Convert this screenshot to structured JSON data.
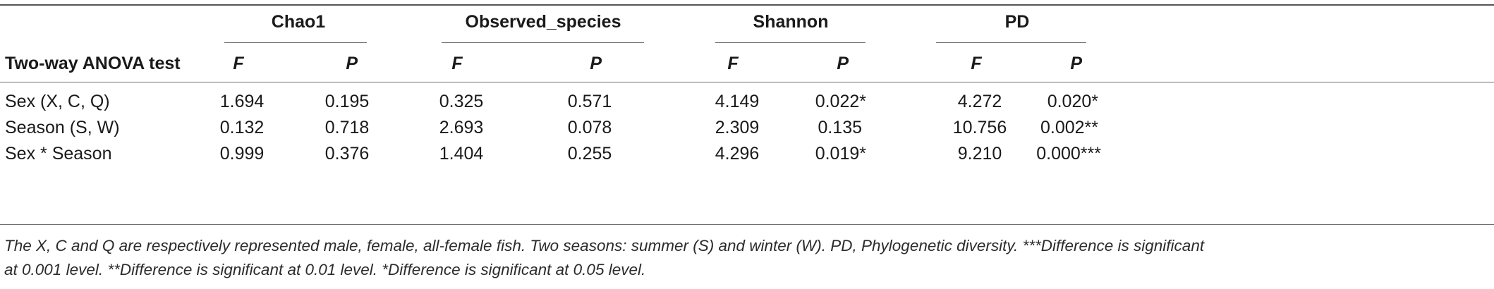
{
  "table": {
    "groups": [
      "Chao1",
      "Observed_species",
      "Shannon",
      "PD"
    ],
    "row_header": "Two-way ANOVA test",
    "stat_f": "F",
    "stat_p": "P",
    "rows": [
      {
        "label": "Sex (X, C, Q)",
        "values": [
          "1.694",
          "0.195",
          "0.325",
          "0.571",
          "4.149",
          "0.022*",
          "4.272",
          "0.020*"
        ]
      },
      {
        "label": "Season (S, W)",
        "values": [
          "0.132",
          "0.718",
          "2.693",
          "0.078",
          "2.309",
          "0.135",
          "10.756",
          "0.002**"
        ]
      },
      {
        "label": "Sex * Season",
        "values": [
          "0.999",
          "0.376",
          "1.404",
          "0.255",
          "4.296",
          "0.019*",
          "9.210",
          "0.000***"
        ]
      }
    ]
  },
  "footnote": {
    "line1": "The X, C and Q are respectively represented male, female, all-female fish. Two seasons: summer (S) and winter (W). PD, Phylogenetic diversity. ***Difference is significant",
    "line2": "at 0.001 level. **Difference is significant at 0.01 level. *Difference is significant at 0.05 level."
  }
}
